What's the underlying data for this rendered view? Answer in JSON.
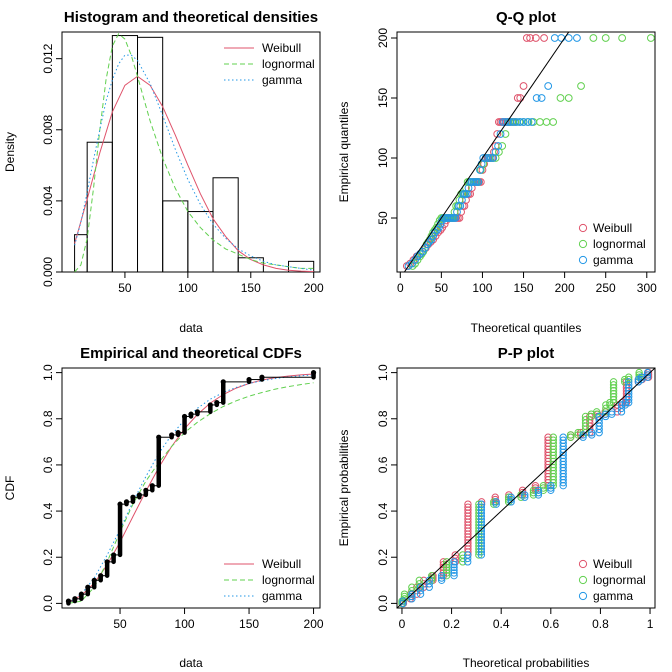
{
  "colors": {
    "Weibull": "#DF536B",
    "lognormal": "#61D04F",
    "gamma": "#2297E6",
    "axis": "#000000"
  },
  "chart_data": [
    {
      "type": "histogram",
      "title": "Histogram and theoretical densities",
      "xlabel": "data",
      "ylabel": "Density",
      "xlim": [
        0,
        205
      ],
      "ylim": [
        0,
        0.0135
      ],
      "xticks": [
        50,
        100,
        150,
        200
      ],
      "yticks": [
        0.0,
        0.004,
        0.008,
        0.012
      ],
      "ytick_labels": [
        "0.000",
        "0.004",
        "0.008",
        "0.012"
      ],
      "bins": [
        {
          "x0": 10,
          "x1": 20,
          "density": 0.0021
        },
        {
          "x0": 20,
          "x1": 40,
          "density": 0.0073
        },
        {
          "x0": 40,
          "x1": 60,
          "density": 0.0133
        },
        {
          "x0": 60,
          "x1": 80,
          "density": 0.0132
        },
        {
          "x0": 80,
          "x1": 100,
          "density": 0.004
        },
        {
          "x0": 100,
          "x1": 120,
          "density": 0.0034
        },
        {
          "x0": 120,
          "x1": 140,
          "density": 0.0053
        },
        {
          "x0": 140,
          "x1": 160,
          "density": 0.0008
        },
        {
          "x0": 160,
          "x1": 180,
          "density": 0.0
        },
        {
          "x0": 180,
          "x1": 200,
          "density": 0.0006
        }
      ],
      "legend": {
        "position": "top-right",
        "entries": [
          "Weibull",
          "lognormal",
          "gamma"
        ]
      },
      "series": [
        {
          "name": "Weibull",
          "line": "solid",
          "x": [
            10,
            20,
            30,
            40,
            50,
            60,
            70,
            80,
            90,
            100,
            110,
            120,
            130,
            140,
            150,
            160,
            170,
            180,
            190,
            200
          ],
          "y": [
            0.0016,
            0.0041,
            0.0067,
            0.009,
            0.0105,
            0.011,
            0.0105,
            0.0093,
            0.0077,
            0.006,
            0.0044,
            0.003,
            0.002,
            0.0012,
            0.0007,
            0.0004,
            0.0002,
            0.0001,
            5e-05,
            2e-05
          ]
        },
        {
          "name": "lognormal",
          "line": "dashed",
          "x": [
            10,
            15,
            20,
            25,
            30,
            35,
            40,
            45,
            50,
            55,
            60,
            70,
            80,
            90,
            100,
            110,
            120,
            130,
            140,
            150,
            160,
            170,
            180,
            190,
            200
          ],
          "y": [
            0.0,
            0.0004,
            0.0019,
            0.0047,
            0.008,
            0.0108,
            0.0127,
            0.0134,
            0.0131,
            0.0122,
            0.011,
            0.0085,
            0.0064,
            0.0047,
            0.0034,
            0.0025,
            0.0018,
            0.0013,
            0.001,
            0.0007,
            0.0005,
            0.0004,
            0.0003,
            0.0002,
            0.0002
          ]
        },
        {
          "name": "gamma",
          "line": "dotted",
          "x": [
            10,
            15,
            20,
            25,
            30,
            35,
            40,
            45,
            50,
            55,
            60,
            70,
            80,
            90,
            100,
            110,
            120,
            130,
            140,
            150,
            160,
            170,
            180,
            190,
            200
          ],
          "y": [
            0.0015,
            0.0028,
            0.0045,
            0.0063,
            0.008,
            0.0096,
            0.0108,
            0.0117,
            0.0122,
            0.0122,
            0.0119,
            0.0106,
            0.0088,
            0.0069,
            0.0052,
            0.0038,
            0.0027,
            0.0019,
            0.0013,
            0.0009,
            0.0006,
            0.0004,
            0.0003,
            0.0002,
            0.0001
          ]
        }
      ]
    },
    {
      "type": "scatter",
      "title": "Q-Q plot",
      "xlabel": "Theoretical quantiles",
      "ylabel": "Empirical quantiles",
      "xlim": [
        -4,
        310
      ],
      "ylim": [
        5,
        205
      ],
      "xticks": [
        0,
        50,
        100,
        150,
        200,
        250,
        300
      ],
      "yticks": [
        50,
        100,
        150,
        200
      ],
      "legend": {
        "position": "bottom-right",
        "entries": [
          "Weibull",
          "lognormal",
          "gamma"
        ]
      },
      "reference_line": "identity",
      "empirical_quantiles": [
        10,
        12,
        15,
        18,
        20,
        22,
        25,
        28,
        30,
        32,
        35,
        38,
        40,
        42,
        45,
        48,
        50,
        50,
        50,
        50,
        50,
        50,
        50,
        50,
        55,
        60,
        60,
        65,
        70,
        70,
        70,
        75,
        80,
        80,
        80,
        80,
        80,
        80,
        90,
        95,
        100,
        100,
        100,
        100,
        100,
        105,
        110,
        120,
        130,
        130,
        130,
        130,
        130,
        130,
        130,
        130,
        130,
        130,
        150,
        150,
        160,
        200,
        200,
        200,
        200
      ],
      "series": [
        {
          "name": "Weibull",
          "theoretical_quantiles": [
            8,
            12,
            16,
            20,
            24,
            27,
            31,
            34,
            37,
            40,
            43,
            46,
            49,
            51,
            54,
            56,
            58,
            60,
            62,
            64,
            66,
            68,
            70,
            72,
            74,
            76,
            78,
            80,
            81,
            83,
            85,
            87,
            89,
            91,
            93,
            94,
            96,
            98,
            100,
            102,
            104,
            106,
            108,
            110,
            112,
            114,
            116,
            118,
            120,
            122,
            124,
            126,
            128,
            130,
            132,
            134,
            137,
            140,
            143,
            146,
            150,
            154,
            158,
            165,
            175
          ]
        },
        {
          "name": "lognormal",
          "theoretical_quantiles": [
            15,
            18,
            21,
            24,
            26,
            28,
            30,
            32,
            34,
            36,
            38,
            40,
            42,
            44,
            46,
            48,
            50,
            52,
            54,
            56,
            58,
            60,
            62,
            64,
            66,
            68,
            70,
            72,
            74,
            76,
            78,
            80,
            82,
            84,
            86,
            89,
            92,
            95,
            98,
            101,
            104,
            107,
            110,
            113,
            116,
            120,
            124,
            128,
            132,
            136,
            140,
            145,
            150,
            156,
            162,
            170,
            178,
            186,
            195,
            205,
            220,
            235,
            250,
            270,
            305
          ]
        },
        {
          "name": "gamma",
          "theoretical_quantiles": [
            10,
            14,
            18,
            21,
            24,
            27,
            30,
            33,
            35,
            38,
            40,
            42,
            45,
            47,
            49,
            51,
            53,
            55,
            57,
            59,
            61,
            63,
            65,
            67,
            69,
            71,
            73,
            75,
            77,
            79,
            81,
            83,
            85,
            87,
            89,
            91,
            93,
            95,
            97,
            99,
            101,
            104,
            107,
            110,
            113,
            116,
            119,
            122,
            125,
            128,
            131,
            134,
            138,
            142,
            146,
            150,
            155,
            160,
            166,
            172,
            180,
            188,
            196,
            205,
            215
          ]
        }
      ]
    },
    {
      "type": "line",
      "title": "Empirical and theoretical CDFs",
      "xlabel": "data",
      "ylabel": "CDF",
      "xlim": [
        5,
        205
      ],
      "ylim": [
        -0.02,
        1.02
      ],
      "xticks": [
        50,
        100,
        150,
        200
      ],
      "yticks": [
        0.0,
        0.2,
        0.4,
        0.6,
        0.8,
        1.0
      ],
      "ytick_labels": [
        "0.0",
        "0.2",
        "0.4",
        "0.6",
        "0.8",
        "1.0"
      ],
      "legend": {
        "position": "bottom-right",
        "entries": [
          "Weibull",
          "lognormal",
          "gamma"
        ]
      },
      "empirical_steps": [
        {
          "x": 10,
          "y0": 0.0,
          "y1": 0.01
        },
        {
          "x": 15,
          "y0": 0.01,
          "y1": 0.02
        },
        {
          "x": 20,
          "y0": 0.02,
          "y1": 0.04
        },
        {
          "x": 25,
          "y0": 0.04,
          "y1": 0.07
        },
        {
          "x": 30,
          "y0": 0.07,
          "y1": 0.1
        },
        {
          "x": 35,
          "y0": 0.1,
          "y1": 0.12
        },
        {
          "x": 40,
          "y0": 0.12,
          "y1": 0.18
        },
        {
          "x": 45,
          "y0": 0.18,
          "y1": 0.21
        },
        {
          "x": 50,
          "y0": 0.21,
          "y1": 0.43
        },
        {
          "x": 55,
          "y0": 0.43,
          "y1": 0.44
        },
        {
          "x": 60,
          "y0": 0.44,
          "y1": 0.46
        },
        {
          "x": 65,
          "y0": 0.46,
          "y1": 0.47
        },
        {
          "x": 70,
          "y0": 0.47,
          "y1": 0.49
        },
        {
          "x": 75,
          "y0": 0.49,
          "y1": 0.51
        },
        {
          "x": 80,
          "y0": 0.51,
          "y1": 0.72
        },
        {
          "x": 90,
          "y0": 0.72,
          "y1": 0.73
        },
        {
          "x": 95,
          "y0": 0.73,
          "y1": 0.74
        },
        {
          "x": 100,
          "y0": 0.74,
          "y1": 0.81
        },
        {
          "x": 105,
          "y0": 0.81,
          "y1": 0.82
        },
        {
          "x": 110,
          "y0": 0.82,
          "y1": 0.83
        },
        {
          "x": 120,
          "y0": 0.83,
          "y1": 0.86
        },
        {
          "x": 125,
          "y0": 0.86,
          "y1": 0.87
        },
        {
          "x": 130,
          "y0": 0.87,
          "y1": 0.96
        },
        {
          "x": 150,
          "y0": 0.96,
          "y1": 0.97
        },
        {
          "x": 160,
          "y0": 0.97,
          "y1": 0.98
        },
        {
          "x": 200,
          "y0": 0.98,
          "y1": 1.0
        }
      ],
      "series": [
        {
          "name": "Weibull",
          "line": "solid",
          "x": [
            10,
            20,
            30,
            40,
            50,
            60,
            70,
            80,
            90,
            100,
            110,
            120,
            130,
            140,
            150,
            160,
            170,
            180,
            190,
            200
          ],
          "y": [
            0.006,
            0.034,
            0.088,
            0.167,
            0.266,
            0.376,
            0.486,
            0.589,
            0.68,
            0.757,
            0.819,
            0.868,
            0.905,
            0.933,
            0.953,
            0.968,
            0.978,
            0.985,
            0.99,
            0.994
          ]
        },
        {
          "name": "lognormal",
          "line": "dashed",
          "x": [
            10,
            20,
            30,
            40,
            50,
            60,
            70,
            80,
            90,
            100,
            110,
            120,
            130,
            140,
            150,
            160,
            170,
            180,
            190,
            200
          ],
          "y": [
            0.0,
            0.01,
            0.07,
            0.18,
            0.31,
            0.43,
            0.53,
            0.61,
            0.68,
            0.74,
            0.785,
            0.822,
            0.853,
            0.878,
            0.898,
            0.914,
            0.928,
            0.939,
            0.948,
            0.956
          ]
        },
        {
          "name": "gamma",
          "line": "dotted",
          "x": [
            10,
            20,
            30,
            40,
            50,
            60,
            70,
            80,
            90,
            100,
            110,
            120,
            130,
            140,
            150,
            160,
            170,
            180,
            190,
            200
          ],
          "y": [
            0.004,
            0.04,
            0.11,
            0.21,
            0.32,
            0.44,
            0.55,
            0.65,
            0.73,
            0.795,
            0.846,
            0.885,
            0.914,
            0.936,
            0.953,
            0.965,
            0.974,
            0.981,
            0.986,
            0.99
          ]
        }
      ]
    },
    {
      "type": "scatter",
      "title": "P-P plot",
      "xlabel": "Theoretical probabilities",
      "ylabel": "Empirical probabilities",
      "xlim": [
        -0.02,
        1.02
      ],
      "ylim": [
        -0.02,
        1.02
      ],
      "xticks": [
        0.0,
        0.2,
        0.4,
        0.6,
        0.8,
        1.0
      ],
      "yticks": [
        0.0,
        0.2,
        0.4,
        0.6,
        0.8,
        1.0
      ],
      "ytick_labels": [
        "0.0",
        "0.2",
        "0.4",
        "0.6",
        "0.8",
        "1.0"
      ],
      "legend": {
        "position": "bottom-right",
        "entries": [
          "Weibull",
          "lognormal",
          "gamma"
        ]
      },
      "reference_line": "identity",
      "steps": [
        {
          "ylo": 0.0,
          "yhi": 0.01,
          "W": 0.006,
          "L": 0.0,
          "G": 0.004
        },
        {
          "ylo": 0.02,
          "yhi": 0.04,
          "W": 0.034,
          "L": 0.01,
          "G": 0.04
        },
        {
          "ylo": 0.04,
          "yhi": 0.07,
          "W": 0.06,
          "L": 0.04,
          "G": 0.075
        },
        {
          "ylo": 0.07,
          "yhi": 0.1,
          "W": 0.088,
          "L": 0.07,
          "G": 0.11
        },
        {
          "ylo": 0.1,
          "yhi": 0.12,
          "W": 0.125,
          "L": 0.12,
          "G": 0.16
        },
        {
          "ylo": 0.12,
          "yhi": 0.18,
          "W": 0.167,
          "L": 0.18,
          "G": 0.21
        },
        {
          "ylo": 0.18,
          "yhi": 0.21,
          "W": 0.215,
          "L": 0.245,
          "G": 0.265
        },
        {
          "ylo": 0.21,
          "yhi": 0.43,
          "W": 0.266,
          "L": 0.31,
          "G": 0.32
        },
        {
          "ylo": 0.43,
          "yhi": 0.44,
          "W": 0.321,
          "L": 0.37,
          "G": 0.38
        },
        {
          "ylo": 0.44,
          "yhi": 0.46,
          "W": 0.376,
          "L": 0.43,
          "G": 0.44
        },
        {
          "ylo": 0.46,
          "yhi": 0.47,
          "W": 0.431,
          "L": 0.48,
          "G": 0.495
        },
        {
          "ylo": 0.47,
          "yhi": 0.49,
          "W": 0.486,
          "L": 0.53,
          "G": 0.55
        },
        {
          "ylo": 0.49,
          "yhi": 0.51,
          "W": 0.538,
          "L": 0.57,
          "G": 0.6
        },
        {
          "ylo": 0.51,
          "yhi": 0.72,
          "W": 0.589,
          "L": 0.61,
          "G": 0.65
        },
        {
          "ylo": 0.72,
          "yhi": 0.73,
          "W": 0.68,
          "L": 0.68,
          "G": 0.73
        },
        {
          "ylo": 0.73,
          "yhi": 0.74,
          "W": 0.72,
          "L": 0.71,
          "G": 0.765
        },
        {
          "ylo": 0.74,
          "yhi": 0.81,
          "W": 0.757,
          "L": 0.74,
          "G": 0.795
        },
        {
          "ylo": 0.81,
          "yhi": 0.82,
          "W": 0.789,
          "L": 0.763,
          "G": 0.821
        },
        {
          "ylo": 0.82,
          "yhi": 0.83,
          "W": 0.819,
          "L": 0.785,
          "G": 0.846
        },
        {
          "ylo": 0.83,
          "yhi": 0.86,
          "W": 0.868,
          "L": 0.822,
          "G": 0.885
        },
        {
          "ylo": 0.86,
          "yhi": 0.87,
          "W": 0.887,
          "L": 0.838,
          "G": 0.9
        },
        {
          "ylo": 0.87,
          "yhi": 0.96,
          "W": 0.905,
          "L": 0.853,
          "G": 0.914
        },
        {
          "ylo": 0.96,
          "yhi": 0.97,
          "W": 0.953,
          "L": 0.898,
          "G": 0.953
        },
        {
          "ylo": 0.97,
          "yhi": 0.98,
          "W": 0.968,
          "L": 0.914,
          "G": 0.965
        },
        {
          "ylo": 0.98,
          "yhi": 1.0,
          "W": 0.994,
          "L": 0.956,
          "G": 0.99
        }
      ]
    }
  ]
}
